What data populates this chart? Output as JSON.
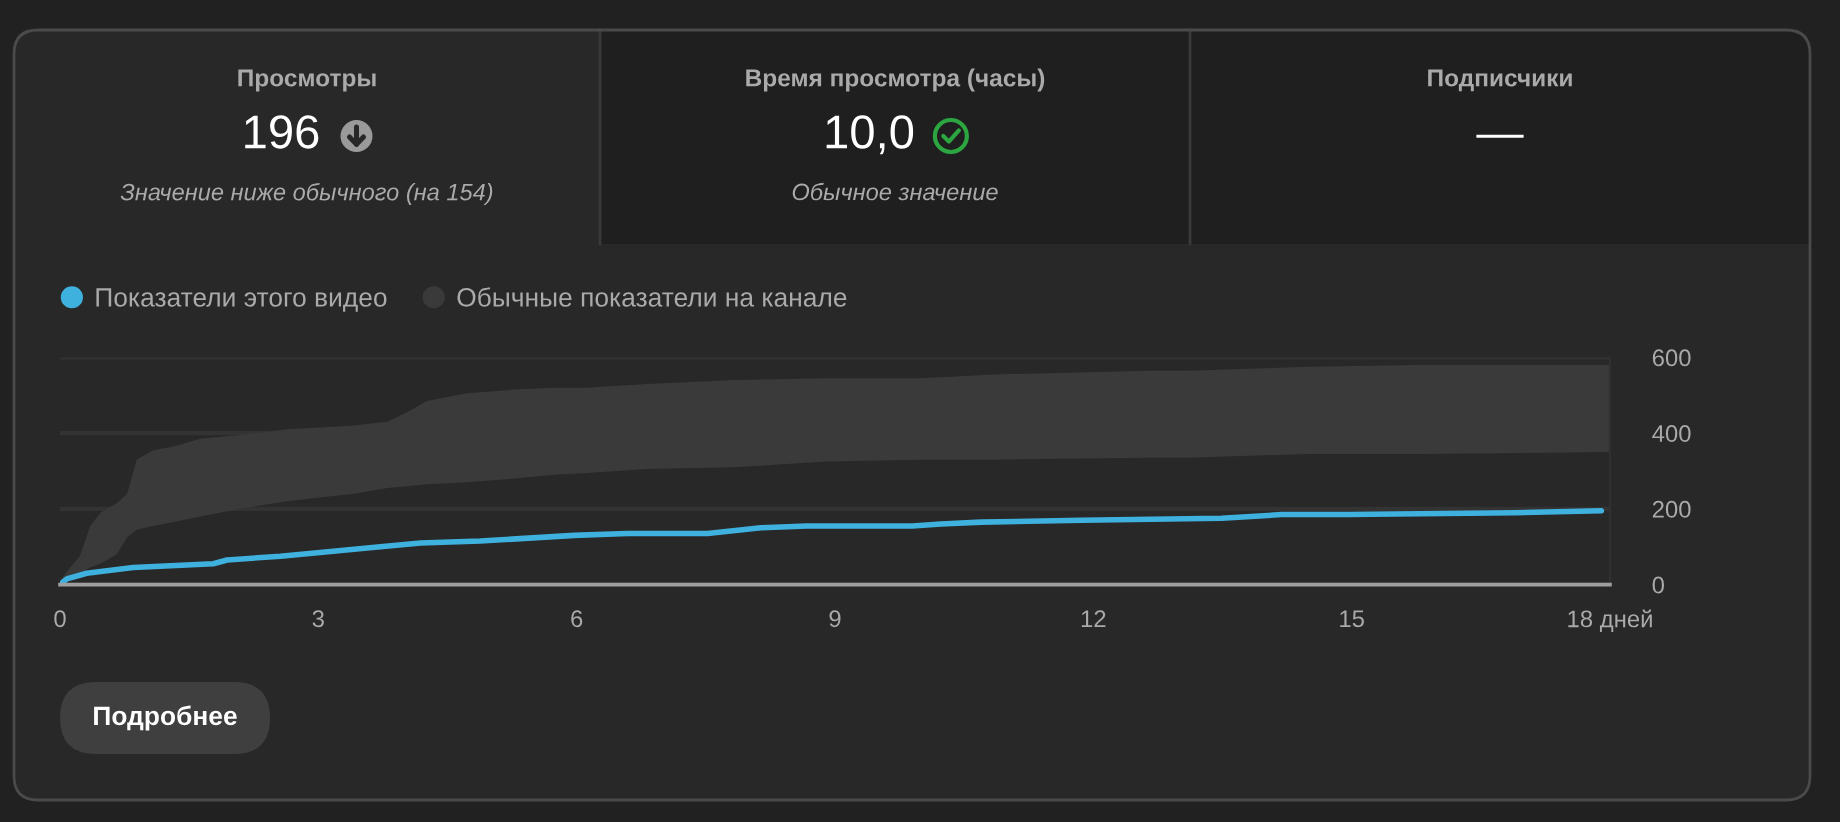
{
  "chart_data": [
    {
      "type": "other",
      "title": "Просмотры",
      "annotations": [
        "196",
        "Значение ниже обычного (на 154)"
      ]
    },
    {
      "type": "other",
      "title": "Время просмотра (часы)",
      "annotations": [
        "10,0",
        "Обычное значение"
      ]
    },
    {
      "type": "other",
      "title": "Подписчики",
      "annotations": [
        "—"
      ]
    },
    {
      "type": "line",
      "legend": "top left",
      "grid": "y",
      "xlim": [
        0,
        18
      ],
      "ylim": [
        0,
        600
      ],
      "xticks": [
        0,
        3,
        6,
        9,
        12,
        15,
        {
          "value": 18,
          "label": "18 дней"
        }
      ],
      "yticks": [
        0,
        200,
        400,
        600
      ],
      "series": [
        {
          "name": "Показатели этого видео",
          "type": "line",
          "color": "#3fb1de",
          "x": [
            0,
            0.08,
            0.31,
            0.85,
            1.78,
            1.94,
            2.56,
            3.02,
            3.72,
            4.19,
            4.88,
            5.97,
            6.59,
            7.52,
            8.14,
            8.67,
            9.9,
            10.23,
            10.7,
            11.86,
            13.49,
            14.19,
            14.96,
            16.9,
            17.9
          ],
          "values": [
            0,
            15,
            30,
            45,
            55,
            65,
            75,
            85,
            100,
            110,
            115,
            130,
            135,
            135,
            150,
            155,
            155,
            160,
            165,
            170,
            175,
            185,
            185,
            190,
            195
          ]
        },
        {
          "name": "Обычные показатели на канале",
          "type": "area",
          "color": "#3a3a3a",
          "x": [
            0,
            0.12,
            0.23,
            0.35,
            0.47,
            0.66,
            0.78,
            0.89,
            1.08,
            1.32,
            1.63,
            2.09,
            2.64,
            3.02,
            3.41,
            3.8,
            4.03,
            4.26,
            4.73,
            5.27,
            5.74,
            6.12,
            6.82,
            7.83,
            8.91,
            10.0,
            10.85,
            12.64,
            13.1,
            14.49,
            15.74,
            18
          ],
          "values": [
            null,
            null,
            null,
            null,
            null,
            null,
            null,
            null,
            null,
            null,
            null,
            null,
            null,
            null,
            null,
            null,
            null,
            null,
            null,
            null,
            null,
            null,
            null,
            null,
            null,
            null,
            null,
            null,
            null,
            null,
            null,
            null
          ],
          "lower": [
            5,
            20,
            30,
            45,
            55,
            80,
            125,
            145,
            155,
            165,
            180,
            200,
            220,
            230,
            240,
            255,
            260,
            265,
            270,
            280,
            290,
            295,
            305,
            310,
            325,
            330,
            330,
            335,
            335,
            345,
            345,
            350
          ],
          "upper": [
            10,
            45,
            75,
            155,
            190,
            215,
            240,
            330,
            355,
            365,
            385,
            395,
            410,
            415,
            420,
            430,
            455,
            485,
            505,
            515,
            520,
            520,
            530,
            540,
            545,
            545,
            555,
            565,
            565,
            575,
            580,
            580
          ]
        }
      ],
      "annotations": [
        "Подробнее"
      ]
    }
  ]
}
